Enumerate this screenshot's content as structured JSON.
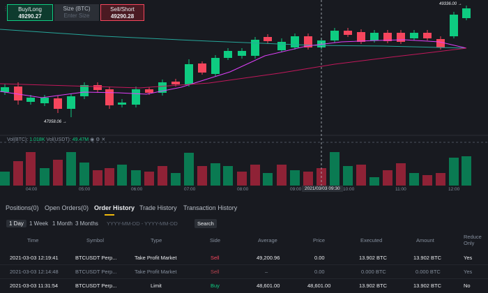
{
  "order_panel": {
    "buy_label": "Buy/Long",
    "buy_price": "49290.27",
    "size_label": "Size (BTC)",
    "size_placeholder": "Enter Size",
    "sell_label": "Sell/Short",
    "sell_price": "49290.28"
  },
  "chart": {
    "high_marker": "49336.00",
    "low_marker": "47058.06",
    "volume_legend_prefix": "Vol(BTC): ",
    "volume_btc": "1.018K",
    "volume_usdt_label": " Vol(USDT): ",
    "volume_usdt": "49.47M",
    "time_labels": [
      "04:00",
      "05:00",
      "06:00",
      "07:00",
      "08:00",
      "09:00",
      "10:00",
      "11:00",
      "12:00"
    ],
    "crosshair_time": "2021/03/03 09:30",
    "colors": {
      "up": "#0ecb81",
      "down": "#f6465d",
      "ma1": "#e040fb",
      "ma2": "#c2185b",
      "ma3": "#26a69a"
    }
  },
  "tabs": [
    {
      "label": "Positions(0)"
    },
    {
      "label": "Open Orders(0)"
    },
    {
      "label": "Order History",
      "active": true
    },
    {
      "label": "Trade History"
    },
    {
      "label": "Transaction History"
    }
  ],
  "filters": {
    "ranges": [
      "1 Day",
      "1 Week",
      "1 Month",
      "3 Months"
    ],
    "active_range": "1 Day",
    "date_placeholder": "YYYY-MM-DD - YYYY-MM-DD",
    "search_label": "Search"
  },
  "table": {
    "headers": [
      "Time",
      "Symbol",
      "Type",
      "Side",
      "Average",
      "Price",
      "Executed",
      "Amount",
      "Reduce Only"
    ],
    "rows": [
      {
        "time": "2021-03-03 12:19:41",
        "symbol": "BTCUSDT Perp...",
        "type": "Take Profit Market",
        "side": "Sell",
        "average": "49,200.96",
        "price": "0.00",
        "executed": "13.902 BTC",
        "amount": "13.902 BTC",
        "reduce_only": "Yes"
      },
      {
        "time": "2021-03-03 12:14:48",
        "symbol": "BTCUSDT Perp...",
        "type": "Take Profit Market",
        "side": "Sell",
        "average": "–",
        "price": "0.00",
        "executed": "0.000 BTC",
        "amount": "0.000 BTC",
        "reduce_only": "Yes"
      },
      {
        "time": "2021-03-03 11:31:54",
        "symbol": "BTCUSDT Perp...",
        "type": "Limit",
        "side": "Buy",
        "average": "48,601.00",
        "price": "48,601.00",
        "executed": "13.902 BTC",
        "amount": "13.902 BTC",
        "reduce_only": "No"
      }
    ]
  }
}
